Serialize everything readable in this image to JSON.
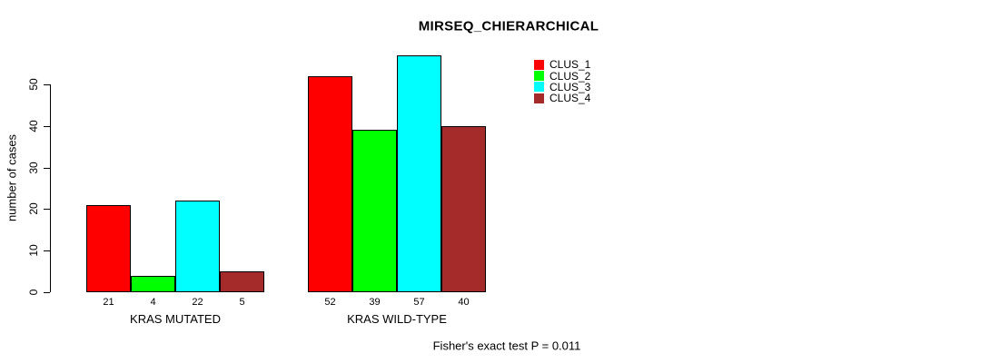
{
  "chart_data": {
    "type": "bar",
    "title": "MIRSEQ_CHIERARCHICAL",
    "ylabel": "number of cases",
    "xlabel": "",
    "categories": [
      "KRAS MUTATED",
      "KRAS WILD-TYPE"
    ],
    "series": [
      {
        "name": "CLUS_1",
        "color": "#FF0000",
        "values": [
          21,
          52
        ]
      },
      {
        "name": "CLUS_2",
        "color": "#00FF00",
        "values": [
          4,
          39
        ]
      },
      {
        "name": "CLUS_3",
        "color": "#00FFFF",
        "values": [
          22,
          57
        ]
      },
      {
        "name": "CLUS_4",
        "color": "#A52A2A",
        "values": [
          5,
          40
        ]
      }
    ],
    "yticks": [
      0,
      10,
      20,
      30,
      40,
      50
    ],
    "ylim": [
      0,
      50
    ],
    "bar_value_labels": [
      [
        21,
        4,
        22,
        5
      ],
      [
        52,
        39,
        57,
        40
      ]
    ],
    "legend_position": "top-right",
    "grid": false,
    "axis_color": "#000000",
    "background_color": "#FFFFFF"
  },
  "footer": {
    "text": "Fisher's exact test P = 0.011"
  }
}
